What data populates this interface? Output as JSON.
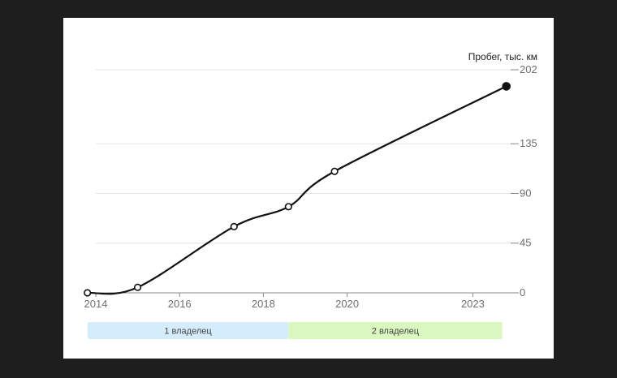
{
  "chart_data": {
    "type": "line",
    "ylabel": "Пробег, тыс. км",
    "y_ticks": [
      0,
      45,
      90,
      135,
      202
    ],
    "ylim": [
      0,
      202
    ],
    "x_ticks": [
      "2014",
      "2016",
      "2018",
      "2020",
      "2023"
    ],
    "xlim": [
      2014,
      2024
    ],
    "grid": true,
    "series": [
      {
        "values": [
          {
            "x": 2013.8,
            "y": 0,
            "marker": "open"
          },
          {
            "x": 2015.0,
            "y": 5,
            "marker": "open"
          },
          {
            "x": 2017.3,
            "y": 60,
            "marker": "open"
          },
          {
            "x": 2018.6,
            "y": 78,
            "marker": "open"
          },
          {
            "x": 2019.7,
            "y": 110,
            "marker": "open"
          },
          {
            "x": 2023.8,
            "y": 187,
            "marker": "filled"
          }
        ]
      }
    ],
    "ownership": [
      {
        "label": "1 владелец",
        "from": 2013.8,
        "to": 2018.6,
        "color": "#d4ecfb"
      },
      {
        "label": "2 владелец",
        "from": 2018.6,
        "to": 2023.7,
        "color": "#d9f7bf"
      }
    ]
  }
}
